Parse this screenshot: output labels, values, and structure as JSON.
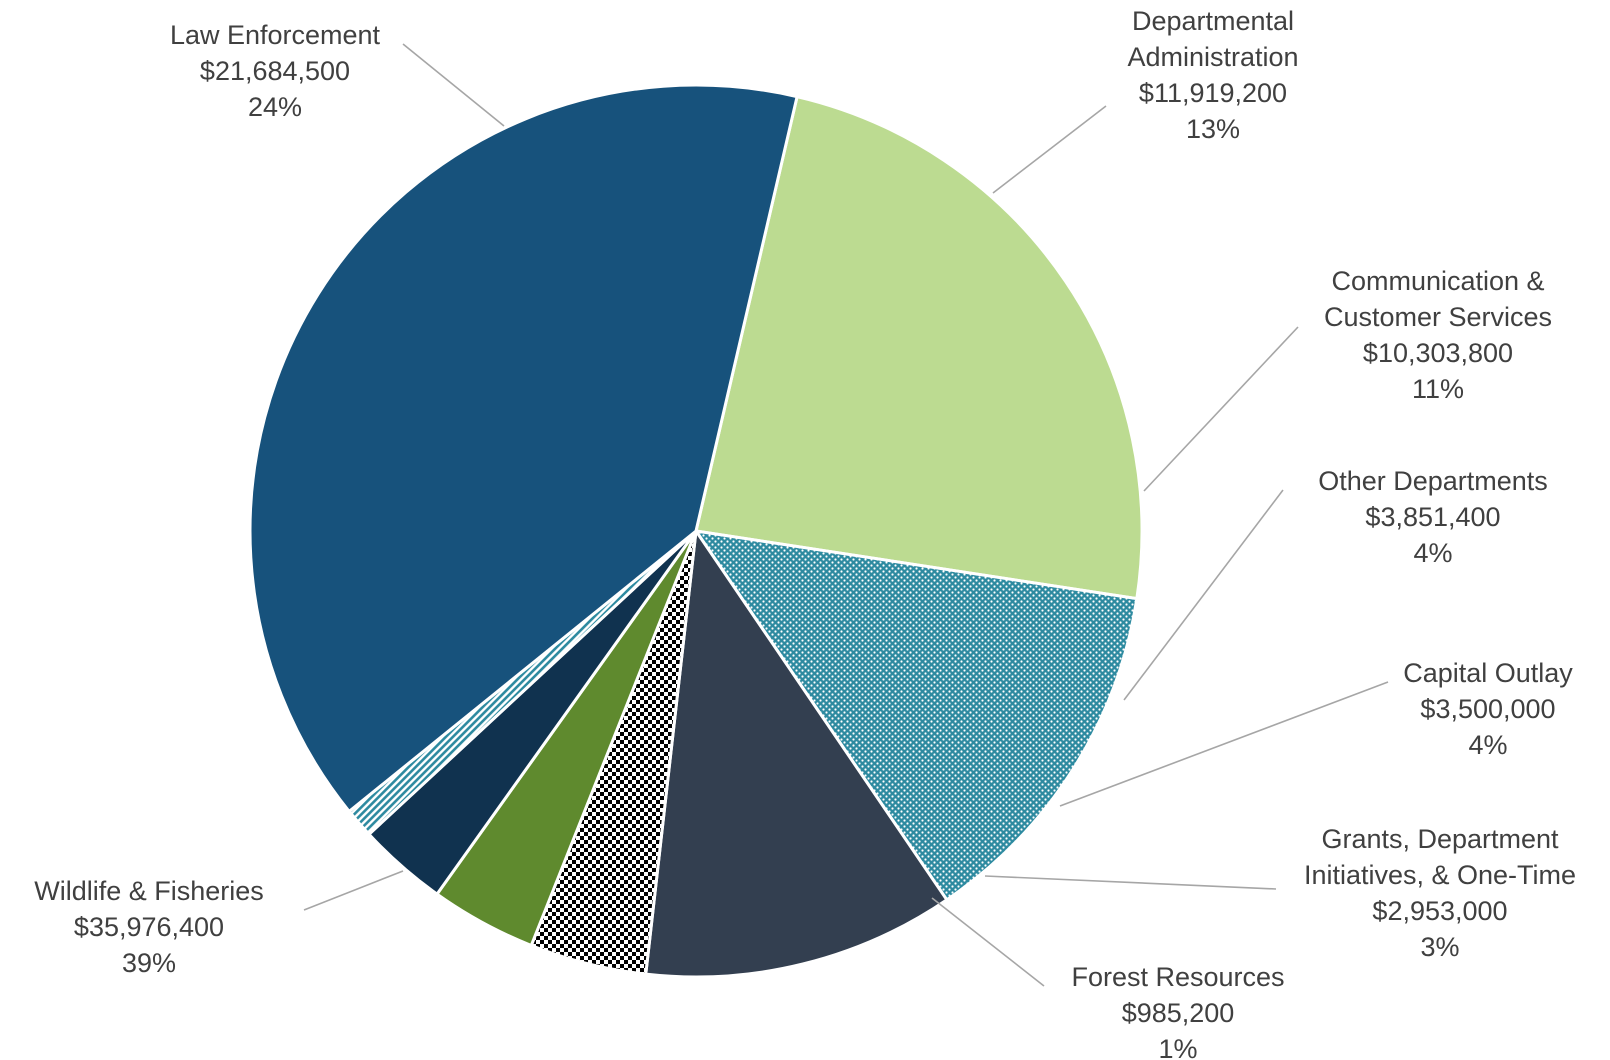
{
  "chart_data": {
    "type": "pie",
    "title": "",
    "series": [
      {
        "name": "Law Enforcement",
        "amount": "$21,684,500",
        "percent": "24%",
        "value": 21684500,
        "color": "#bcdb91",
        "pattern": "solid"
      },
      {
        "name_lines": [
          "Departmental",
          "Administration"
        ],
        "amount": "$11,919,200",
        "percent": "13%",
        "value": 11919200,
        "color": "#2d8aa0",
        "pattern": "dots"
      },
      {
        "name_lines": [
          "Communication &",
          "Customer Services"
        ],
        "amount": "$10,303,800",
        "percent": "11%",
        "value": 10303800,
        "color": "#333f50",
        "pattern": "solid"
      },
      {
        "name": "Other Departments",
        "amount": "$3,851,400",
        "percent": "4%",
        "value": 3851400,
        "color": "#000000",
        "pattern": "checker"
      },
      {
        "name": "Capital Outlay",
        "amount": "$3,500,000",
        "percent": "4%",
        "value": 3500000,
        "color": "#5f8a2e",
        "pattern": "solid"
      },
      {
        "name_lines": [
          "Grants, Department",
          "Initiatives, & One-Time"
        ],
        "amount": "$2,953,000",
        "percent": "3%",
        "value": 2953000,
        "color": "#10324f",
        "pattern": "solid"
      },
      {
        "name": "Forest Resources",
        "amount": "$985,200",
        "percent": "1%",
        "value": 985200,
        "color": "#2d8aa0",
        "pattern": "diagonal"
      },
      {
        "name": "Wildlife & Fisheries",
        "amount": "$35,976,400",
        "percent": "39%",
        "value": 35976400,
        "color": "#17527c",
        "pattern": "solid"
      }
    ],
    "legend": "none (data labels with leader lines)"
  }
}
